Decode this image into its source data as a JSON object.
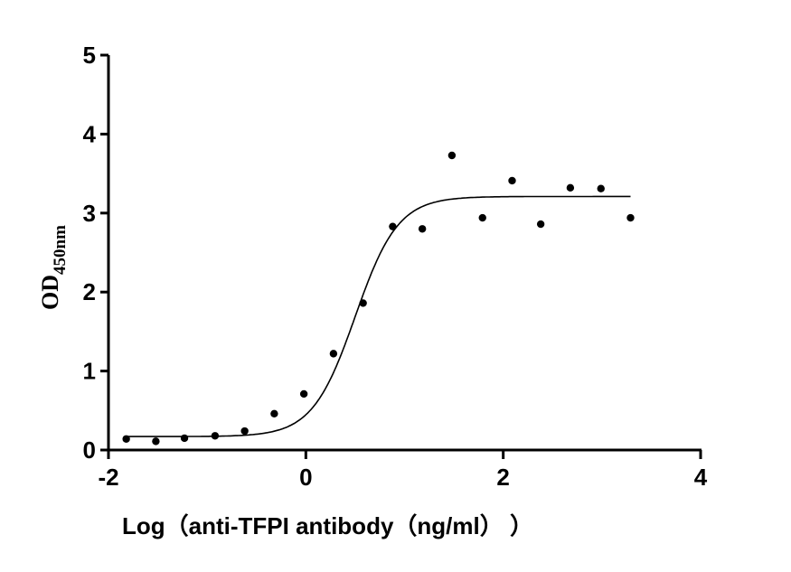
{
  "chart_data": {
    "type": "scatter",
    "title": "",
    "xlabel": "Log（anti-TFPI antibody（ng/ml）  ）",
    "ylabel_main": "OD",
    "ylabel_sub": "450nm",
    "xlim": [
      -2,
      4
    ],
    "ylim": [
      0,
      5
    ],
    "xticks": [
      "-2",
      "0",
      "2",
      "4"
    ],
    "yticks": [
      "0",
      "1",
      "2",
      "3",
      "4",
      "5"
    ],
    "grid": false,
    "points": {
      "x": [
        -1.82,
        -1.52,
        -1.23,
        -0.92,
        -0.62,
        -0.32,
        -0.02,
        0.28,
        0.58,
        0.88,
        1.18,
        1.48,
        1.79,
        2.09,
        2.38,
        2.68,
        2.99,
        3.29
      ],
      "y": [
        0.14,
        0.11,
        0.15,
        0.18,
        0.24,
        0.46,
        0.71,
        1.22,
        1.86,
        2.83,
        2.8,
        3.73,
        2.94,
        3.41,
        2.86,
        3.32,
        3.31,
        2.94
      ]
    },
    "fit_curve": {
      "model": "4-parameter logistic",
      "bottom": 0.17,
      "top": 3.21,
      "logEC50": 0.5,
      "hill_slope": 2.0,
      "x_range": [
        -1.82,
        3.29
      ]
    },
    "colors": {
      "points": "#000000",
      "curve": "#000000",
      "axes": "#000000"
    }
  }
}
